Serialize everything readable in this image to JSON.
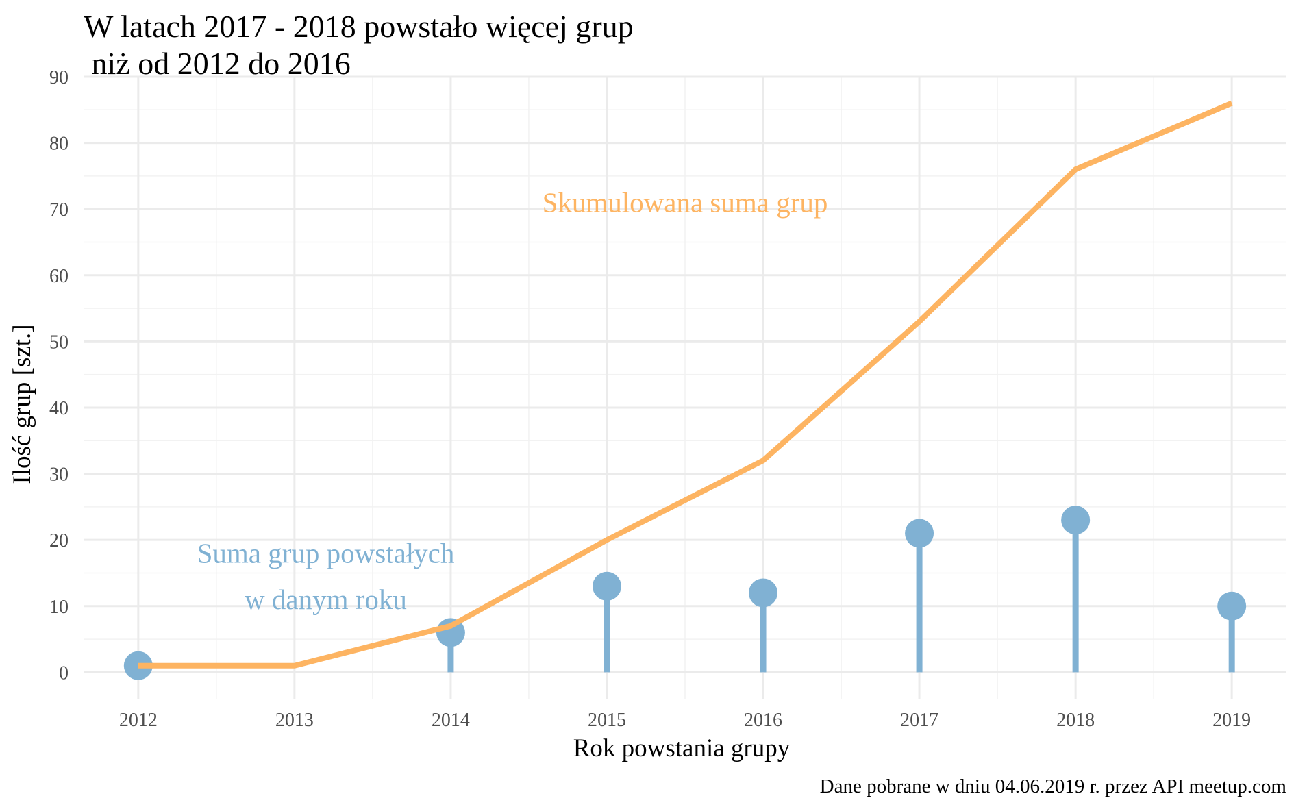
{
  "colors": {
    "cumulative": "#fdb462",
    "yearly": "#80b1d3",
    "grid_major": "#ebebeb",
    "grid_minor": "#f2f2f2",
    "tick_text": "#4d4d4d"
  },
  "chart_data": {
    "type": "line",
    "title_line1": "W latach 2017 - 2018 powstało więcej grup",
    "title_line2": " niż od 2012 do 2016",
    "xlabel": "Rok powstania grupy",
    "ylabel": "Ilość grup [szt.]",
    "caption": "Dane pobrane w dniu 04.06.2019 r. przez API meetup.com",
    "x": [
      2012,
      2013,
      2014,
      2015,
      2016,
      2017,
      2018,
      2019
    ],
    "xlim": [
      2011.65,
      2019.35
    ],
    "ylim": [
      -4,
      90
    ],
    "yticks": [
      0,
      10,
      20,
      30,
      40,
      50,
      60,
      70,
      80,
      90
    ],
    "grid": true,
    "series": [
      {
        "name": "Skumulowana suma grup",
        "style": "line",
        "x": [
          2012,
          2013,
          2014,
          2015,
          2016,
          2017,
          2018,
          2019
        ],
        "values": [
          1,
          1,
          7,
          20,
          32,
          53,
          76,
          86
        ]
      },
      {
        "name": "Suma grup powstałych w danym roku",
        "style": "lollipop",
        "x": [
          2012,
          2014,
          2015,
          2016,
          2017,
          2018,
          2019
        ],
        "values": [
          1,
          6,
          13,
          12,
          21,
          23,
          10
        ]
      }
    ],
    "annotations": [
      {
        "text": "Skumulowana suma grup",
        "x": 2015.5,
        "y": 71,
        "series": "cumulative"
      },
      {
        "text": "Suma grup powstałych",
        "x": 2013.2,
        "y": 18,
        "series": "yearly"
      },
      {
        "text": "w danym roku",
        "x": 2013.2,
        "y": 11,
        "series": "yearly"
      }
    ]
  }
}
